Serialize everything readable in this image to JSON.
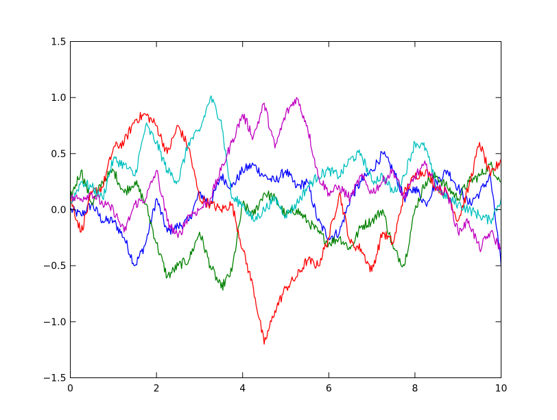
{
  "chart_data": {
    "type": "line",
    "title": "",
    "xlabel": "",
    "ylabel": "",
    "xlim": [
      0,
      10
    ],
    "ylim": [
      -1.5,
      1.5
    ],
    "grid": false,
    "legend": "none",
    "x_ticks": [
      0,
      2,
      4,
      6,
      8,
      10
    ],
    "x_tick_labels": [
      "0",
      "2",
      "4",
      "6",
      "8",
      "10"
    ],
    "y_ticks": [
      -1.5,
      -1.0,
      -0.5,
      0.0,
      0.5,
      1.0,
      1.5
    ],
    "y_tick_labels": [
      "−1.5",
      "−1.0",
      "−0.5",
      "0.0",
      "0.5",
      "1.0",
      "1.5"
    ],
    "x": [
      0,
      0.25,
      0.5,
      0.75,
      1.0,
      1.25,
      1.5,
      1.75,
      2.0,
      2.25,
      2.5,
      2.75,
      3.0,
      3.25,
      3.5,
      3.75,
      4.0,
      4.25,
      4.5,
      4.75,
      5.0,
      5.25,
      5.5,
      5.75,
      6.0,
      6.25,
      6.5,
      6.75,
      7.0,
      7.25,
      7.5,
      7.75,
      8.0,
      8.25,
      8.5,
      8.75,
      9.0,
      9.25,
      9.5,
      9.75,
      10.0
    ],
    "series": [
      {
        "color": "#0000ff",
        "values": [
          0.0,
          -0.05,
          0.05,
          -0.1,
          -0.1,
          -0.25,
          -0.5,
          -0.3,
          0.1,
          -0.2,
          -0.15,
          -0.1,
          0.15,
          0.05,
          0.3,
          0.2,
          0.35,
          0.4,
          0.3,
          0.25,
          0.35,
          0.2,
          0.25,
          -0.1,
          -0.25,
          -0.2,
          0.1,
          0.25,
          0.35,
          0.5,
          0.35,
          0.1,
          0.2,
          0.05,
          0.25,
          0.35,
          0.2,
          0.05,
          0.15,
          0.3,
          -0.5
        ]
      },
      {
        "color": "#008000",
        "values": [
          0.1,
          0.35,
          0.05,
          0.25,
          0.35,
          0.15,
          0.25,
          0.05,
          -0.3,
          -0.6,
          -0.5,
          -0.45,
          -0.2,
          -0.5,
          -0.7,
          -0.55,
          0.05,
          -0.05,
          0.15,
          0.1,
          -0.05,
          0.0,
          -0.1,
          -0.2,
          -0.3,
          -0.25,
          -0.35,
          -0.15,
          -0.1,
          0.0,
          -0.35,
          -0.5,
          0.0,
          0.25,
          0.3,
          0.2,
          0.1,
          0.25,
          0.3,
          0.4,
          0.25
        ]
      },
      {
        "color": "#ff0000",
        "values": [
          0.1,
          -0.2,
          0.15,
          0.2,
          0.55,
          0.6,
          0.8,
          0.85,
          0.75,
          0.5,
          0.75,
          0.55,
          0.1,
          0.05,
          0.0,
          0.05,
          -0.35,
          -0.7,
          -1.2,
          -0.9,
          -0.7,
          -0.6,
          -0.45,
          -0.5,
          -0.25,
          0.15,
          -0.3,
          -0.35,
          -0.55,
          -0.2,
          -0.3,
          0.15,
          0.3,
          0.35,
          0.2,
          0.15,
          -0.1,
          0.2,
          0.6,
          0.3,
          0.45
        ]
      },
      {
        "color": "#00bfbf",
        "values": [
          0.05,
          0.25,
          0.2,
          0.1,
          0.45,
          0.4,
          0.3,
          0.75,
          0.6,
          0.35,
          0.25,
          0.6,
          0.7,
          1.0,
          0.8,
          0.1,
          0.05,
          -0.1,
          0.0,
          0.1,
          -0.05,
          0.05,
          0.2,
          0.3,
          0.35,
          0.3,
          0.45,
          0.5,
          0.25,
          0.3,
          0.15,
          0.3,
          0.6,
          0.55,
          0.2,
          0.1,
          0.05,
          0.0,
          -0.05,
          -0.1,
          0.1
        ]
      },
      {
        "color": "#bf00bf",
        "values": [
          0.1,
          0.1,
          0.15,
          0.05,
          0.0,
          -0.2,
          0.05,
          0.1,
          0.35,
          -0.1,
          -0.25,
          -0.05,
          0.0,
          0.1,
          0.35,
          0.6,
          0.85,
          0.65,
          0.95,
          0.55,
          0.85,
          1.0,
          0.75,
          0.3,
          0.15,
          0.2,
          0.1,
          0.3,
          0.15,
          0.25,
          0.35,
          0.1,
          0.3,
          0.4,
          0.2,
          0.15,
          -0.2,
          -0.1,
          -0.35,
          -0.2,
          -0.35
        ]
      }
    ]
  }
}
